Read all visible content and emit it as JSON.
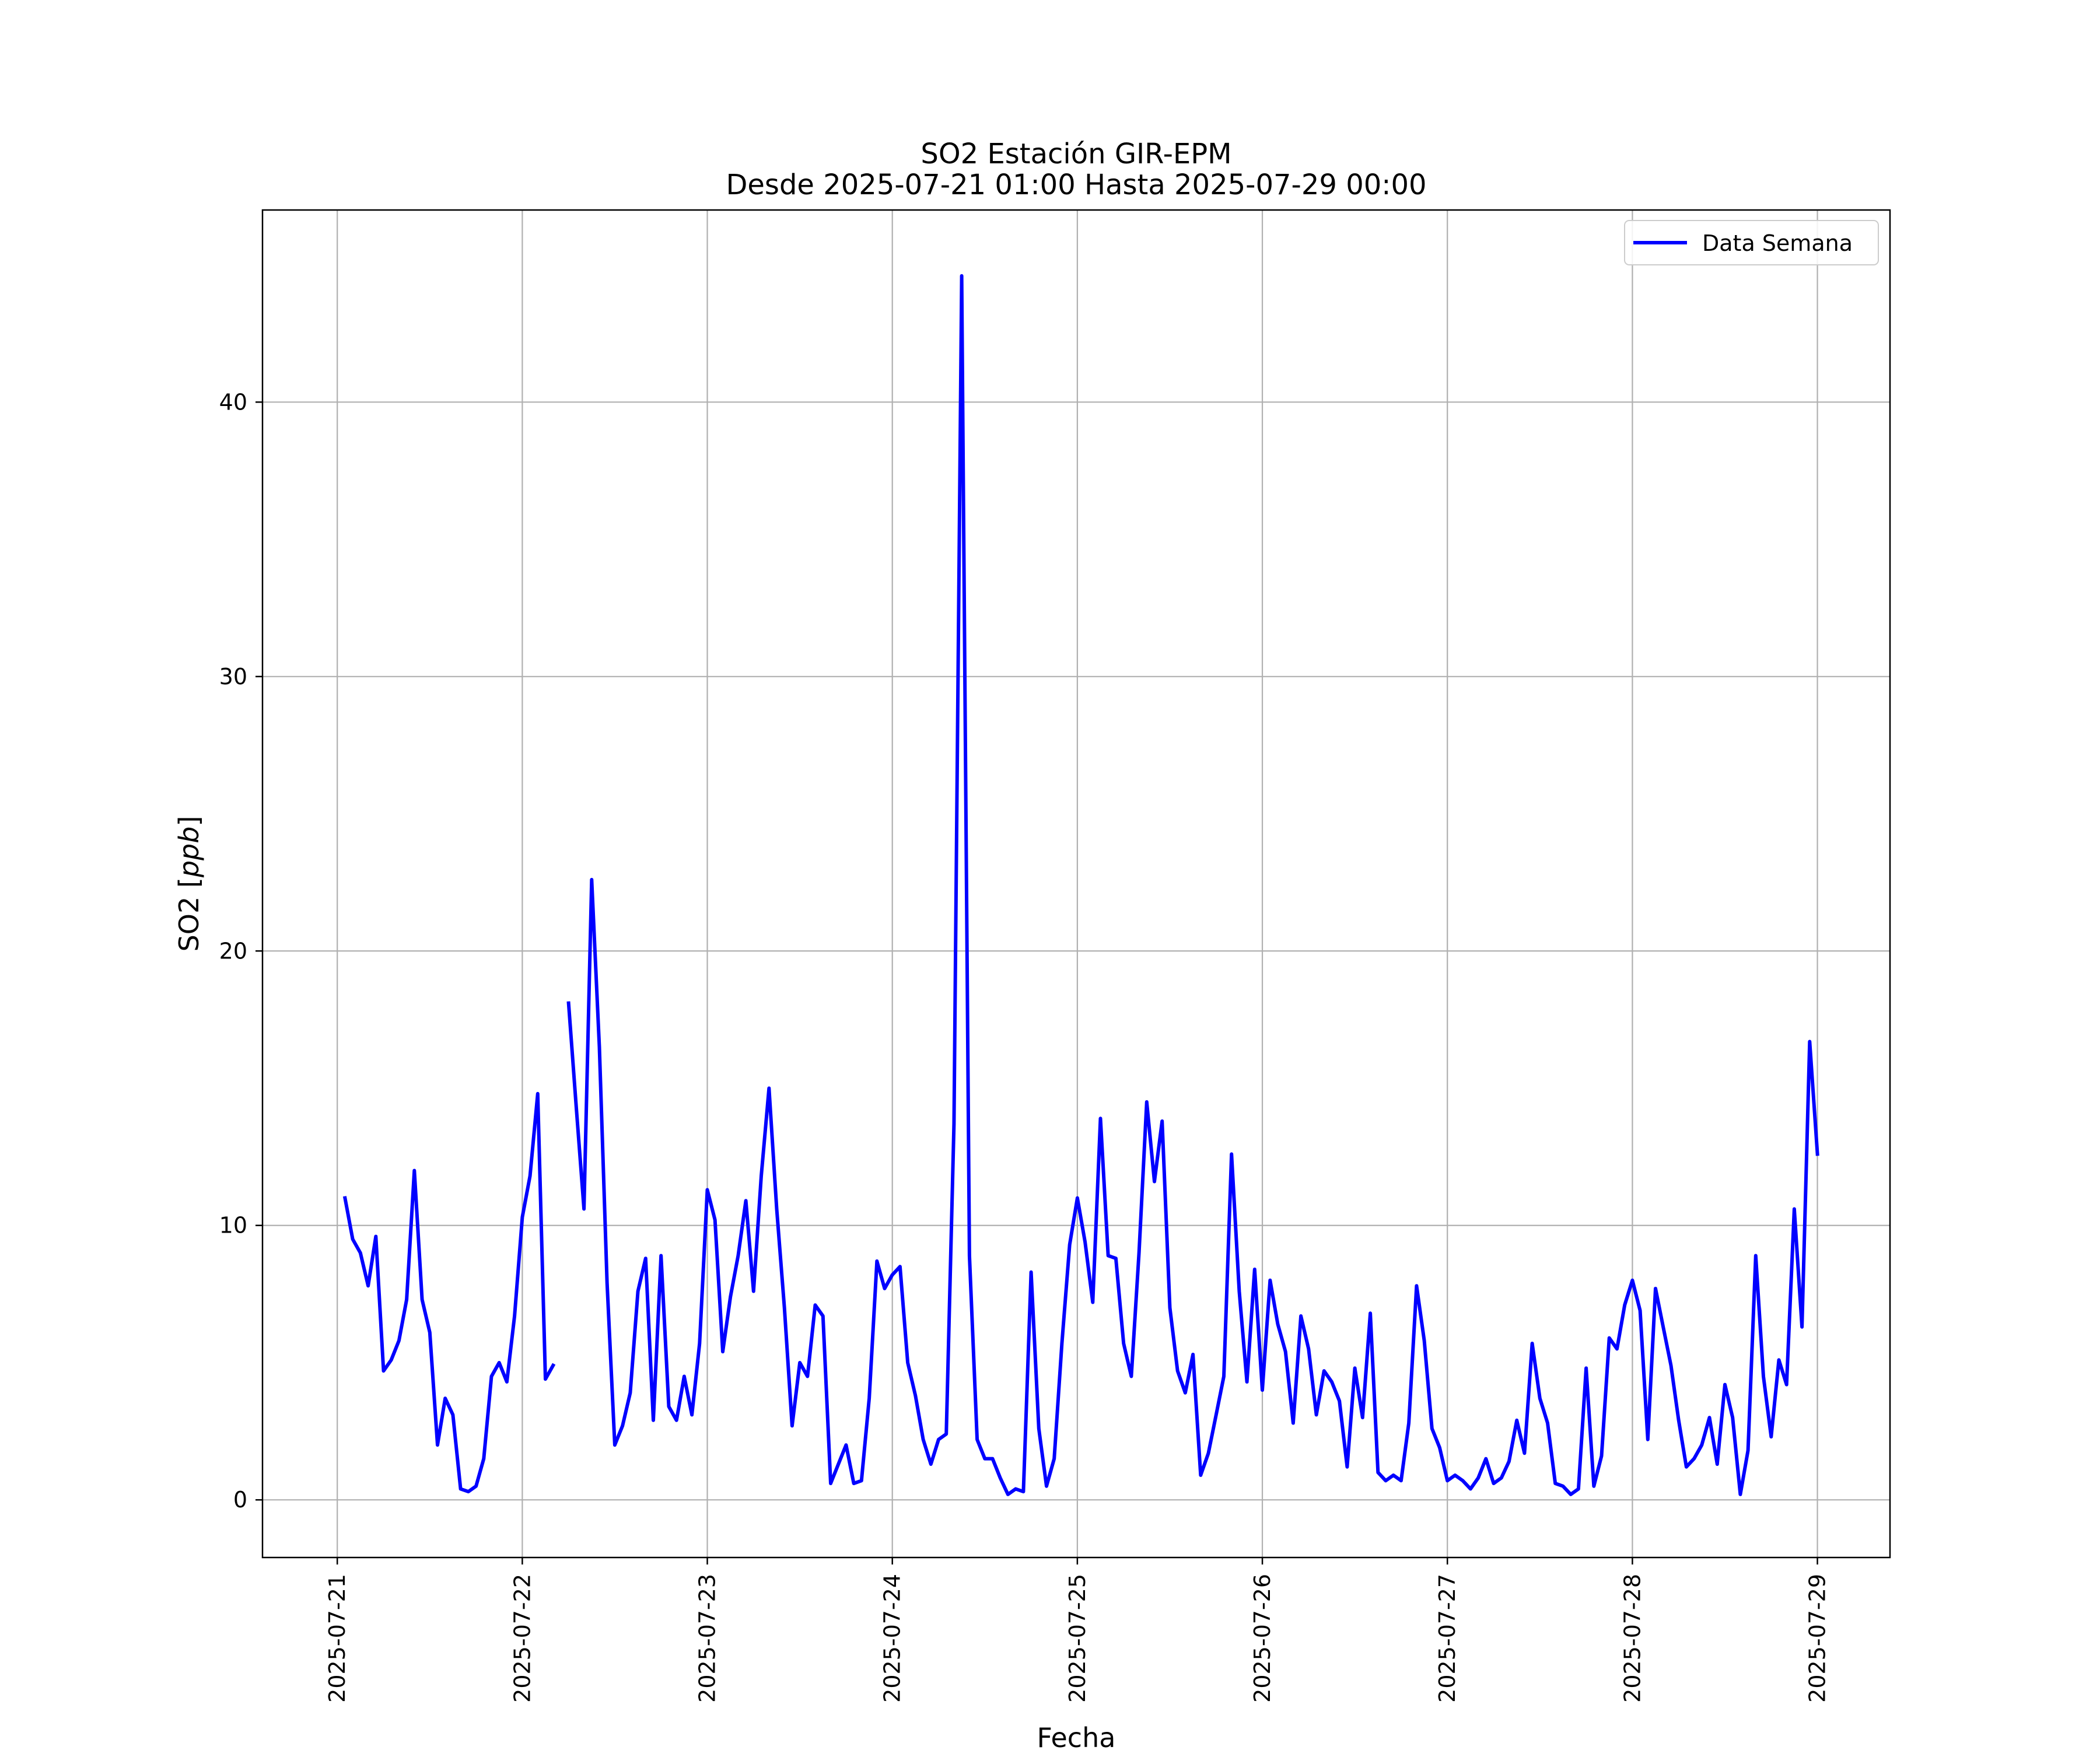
{
  "chart_data": {
    "type": "line",
    "title": "SO2 Estación GIR-EPM",
    "subtitle": "Desde 2025-07-21 01:00 Hasta 2025-07-29 00:00",
    "xlabel": "Fecha",
    "ylabel_prefix": "SO2 [",
    "ylabel_unit": "ppb",
    "ylabel_suffix": "]",
    "x_start": "2025-07-21T01:00",
    "x_step_hours": 1,
    "xlim": [
      "2025-07-20T14:18",
      "2025-07-29T09:25"
    ],
    "ylim": [
      -2.1,
      47
    ],
    "xticks": [
      "2025-07-21",
      "2025-07-22",
      "2025-07-23",
      "2025-07-24",
      "2025-07-25",
      "2025-07-26",
      "2025-07-27",
      "2025-07-28",
      "2025-07-29"
    ],
    "yticks": [
      0,
      10,
      20,
      30,
      40
    ],
    "grid": true,
    "legend_position": "top-right",
    "series": [
      {
        "name": "Data Semana",
        "color": "#0000ff",
        "values": [
          11.0,
          9.5,
          9.0,
          7.8,
          9.6,
          4.7,
          5.1,
          5.8,
          7.3,
          12.0,
          7.3,
          6.1,
          2.0,
          3.7,
          3.1,
          0.4,
          0.3,
          0.5,
          1.5,
          4.5,
          5.0,
          4.3,
          6.7,
          10.3,
          11.8,
          14.8,
          4.4,
          4.9,
          null,
          18.1,
          14.3,
          10.6,
          22.6,
          16.5,
          7.9,
          2.0,
          2.7,
          3.9,
          7.6,
          8.8,
          2.9,
          8.9,
          3.4,
          2.9,
          4.5,
          3.1,
          5.7,
          11.3,
          10.2,
          5.4,
          7.4,
          8.9,
          10.9,
          7.6,
          11.8,
          15.0,
          10.6,
          7.0,
          2.7,
          5.0,
          4.5,
          7.1,
          6.7,
          0.6,
          1.3,
          2.0,
          0.6,
          0.7,
          3.7,
          8.7,
          7.7,
          8.2,
          8.5,
          5.0,
          3.8,
          2.2,
          1.3,
          2.2,
          2.4,
          13.7,
          44.6,
          8.9,
          2.2,
          1.5,
          1.5,
          0.8,
          0.2,
          0.4,
          0.3,
          8.3,
          2.6,
          0.5,
          1.5,
          5.7,
          9.3,
          11.0,
          9.4,
          7.2,
          13.9,
          8.9,
          8.8,
          5.7,
          4.5,
          9.0,
          14.5,
          11.6,
          13.8,
          7.0,
          4.7,
          3.9,
          5.3,
          0.9,
          1.7,
          3.1,
          4.5,
          12.6,
          7.6,
          4.3,
          8.4,
          4.0,
          8.0,
          6.4,
          5.4,
          2.8,
          6.7,
          5.5,
          3.1,
          4.7,
          4.3,
          3.6,
          1.2,
          4.8,
          3.0,
          6.8,
          1.0,
          0.7,
          0.9,
          0.7,
          2.8,
          7.8,
          5.8,
          2.6,
          1.9,
          0.7,
          0.9,
          0.7,
          0.4,
          0.8,
          1.5,
          0.6,
          0.8,
          1.4,
          2.9,
          1.7,
          5.7,
          3.7,
          2.8,
          0.6,
          0.5,
          0.2,
          0.4,
          4.8,
          0.5,
          1.6,
          5.9,
          5.5,
          7.1,
          8.0,
          6.9,
          2.2,
          7.7,
          6.3,
          4.9,
          2.9,
          1.2,
          1.5,
          2.0,
          3.0,
          1.3,
          4.2,
          3.0,
          0.2,
          1.8,
          8.9,
          4.5,
          2.3,
          5.1,
          4.2,
          10.6,
          6.3,
          16.7,
          12.6
        ]
      }
    ]
  }
}
